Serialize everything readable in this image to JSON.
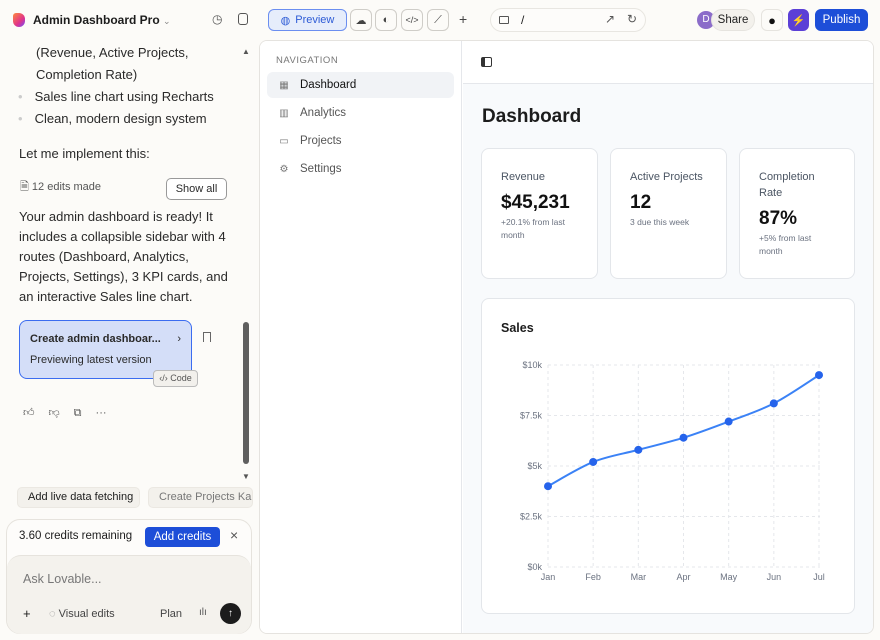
{
  "topbar": {
    "project_name": "Admin Dashboard Pro",
    "preview_label": "Preview",
    "url_path": "/",
    "avatar_initial": "D",
    "share_label": "Share",
    "publish_label": "Publish"
  },
  "chat": {
    "lines": [
      "(Revenue, Active Projects,",
      "Completion Rate)"
    ],
    "bullets": [
      "Sales line chart using Recharts",
      "Clean, modern design system"
    ],
    "implement": "Let me implement this:",
    "edits": "12 edits made",
    "show_all": "Show all",
    "summary": "Your admin dashboard is ready! It includes a collapsible sidebar with 4 routes (Dashboard, Analytics, Projects, Settings), 3 KPI cards, and an interactive Sales line chart.",
    "version_title": "Create admin dashboar...",
    "version_sub": "Previewing latest version",
    "code_label": "Code",
    "suggestions": [
      "Add live data fetching",
      "Create Projects Kanban"
    ],
    "credits": "3.60 credits remaining",
    "add_credits": "Add credits",
    "input_placeholder": "Ask Lovable...",
    "visual_edits": "Visual edits",
    "plan": "Plan"
  },
  "app": {
    "nav_heading": "NAVIGATION",
    "nav": [
      {
        "label": "Dashboard",
        "icon": "grid-icon",
        "active": true
      },
      {
        "label": "Analytics",
        "icon": "bar-chart-icon"
      },
      {
        "label": "Projects",
        "icon": "folder-icon"
      },
      {
        "label": "Settings",
        "icon": "gear-icon"
      }
    ],
    "title": "Dashboard",
    "kpis": [
      {
        "label": "Revenue",
        "value": "$45,231",
        "sub": "+20.1% from last month"
      },
      {
        "label": "Active Projects",
        "value": "12",
        "sub": "3 due this week"
      },
      {
        "label": "Completion Rate",
        "value": "87%",
        "sub": "+5% from last month"
      }
    ]
  },
  "colors": {
    "accent": "#2563eb",
    "line": "#3b82f6",
    "publish": "#1d4ed8",
    "bolt": "#5b3fd6"
  },
  "chart_data": {
    "type": "line",
    "title": "Sales",
    "categories": [
      "Jan",
      "Feb",
      "Mar",
      "Apr",
      "May",
      "Jun",
      "Jul"
    ],
    "values": [
      4000,
      5200,
      5800,
      6400,
      7200,
      8100,
      9500
    ],
    "ylim": [
      0,
      10000
    ],
    "yticks": [
      "$0k",
      "$2.5k",
      "$5k",
      "$7.5k",
      "$10k"
    ],
    "grid": true
  }
}
